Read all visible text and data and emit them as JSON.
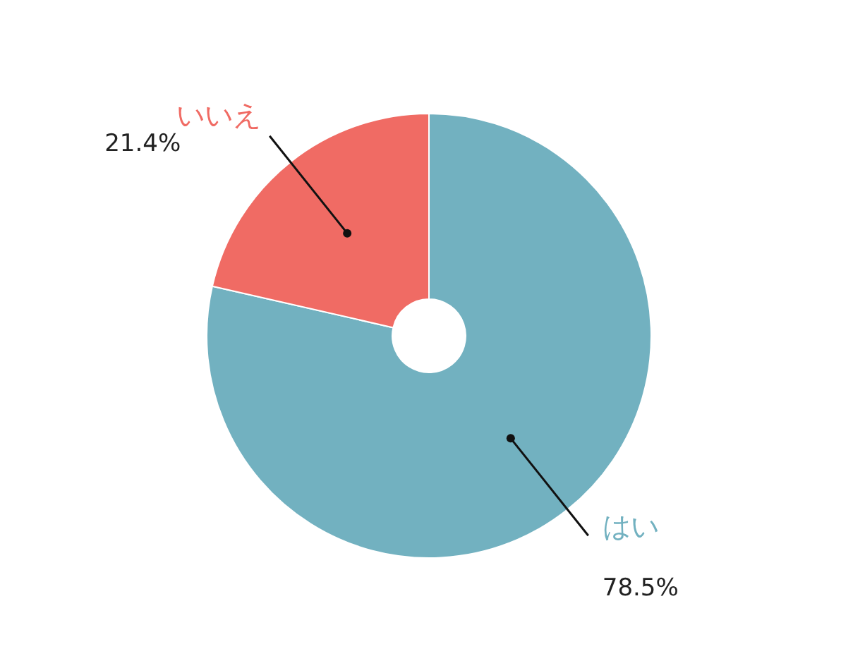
{
  "chart_data": {
    "type": "donut",
    "categories": [
      "はい",
      "いいえ"
    ],
    "values": [
      78.5,
      21.4
    ],
    "colors": [
      "#72b1c0",
      "#f06b64"
    ],
    "value_labels": [
      "78.5%",
      "21.4%"
    ],
    "legend": false
  }
}
